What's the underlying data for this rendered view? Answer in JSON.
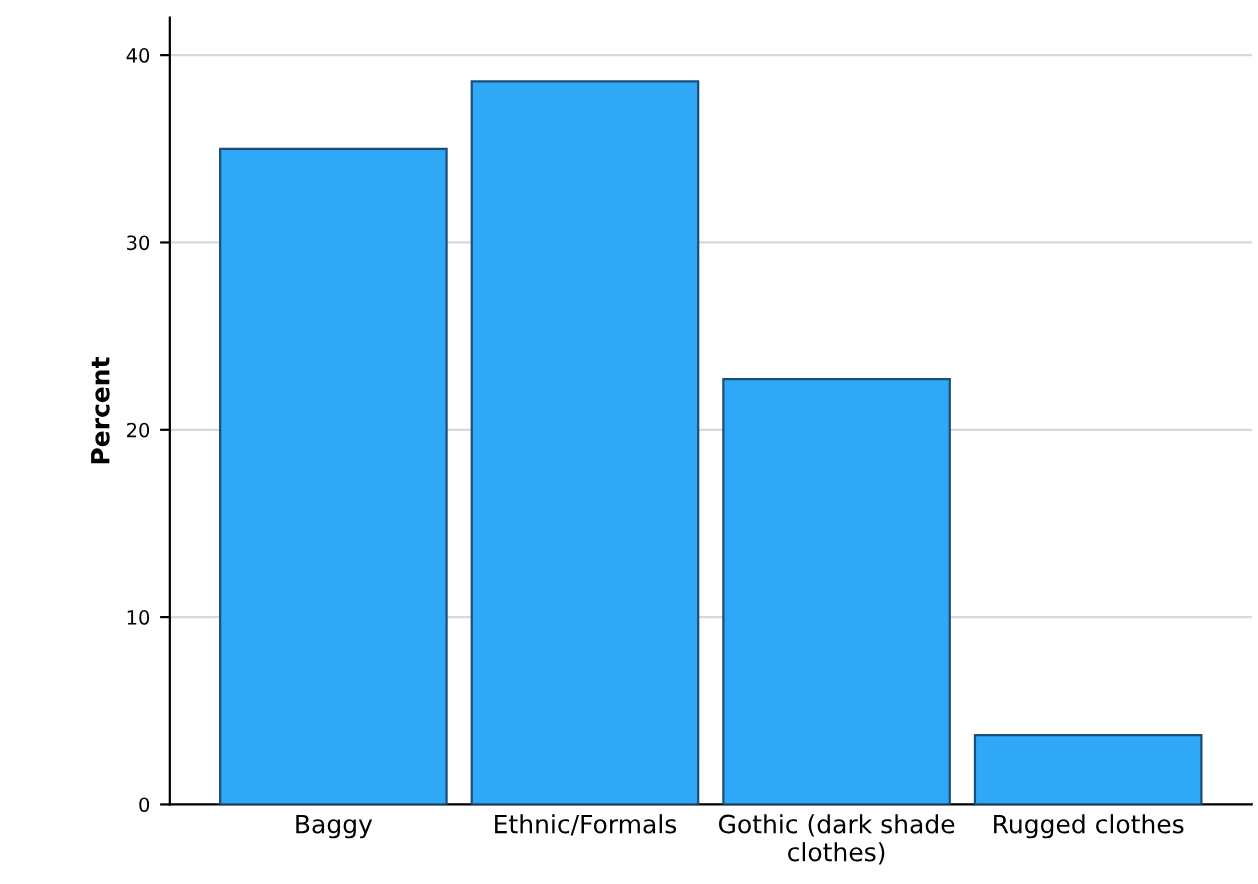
{
  "chart_data": {
    "type": "bar",
    "ylabel": "Percent",
    "categories": [
      "Baggy",
      "Ethnic/Formals",
      "Gothic (dark shade\nclothes)",
      "Rugged clothes"
    ],
    "values": [
      35.0,
      38.6,
      22.7,
      3.7
    ],
    "color": "#2fa9f7",
    "ylim": [
      0,
      42
    ],
    "yticks": [
      0,
      10,
      20,
      30,
      40
    ],
    "grid": "y",
    "legend": false
  }
}
